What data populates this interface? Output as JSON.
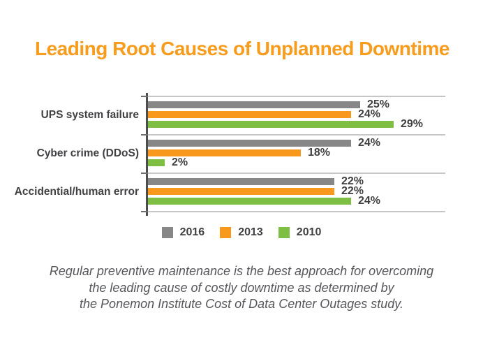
{
  "title": {
    "text": "Leading Root Causes of Unplanned Downtime",
    "color": "#F89C1D"
  },
  "chart_data": {
    "type": "bar",
    "orientation": "horizontal",
    "title": "Leading Root Causes of Unplanned Downtime",
    "categories": [
      "UPS system failure",
      "Cyber crime (DDoS)",
      "Accidential/human error"
    ],
    "series": [
      {
        "name": "2016",
        "color": "#878787",
        "values": [
          25,
          24,
          22
        ]
      },
      {
        "name": "2013",
        "color": "#F8981D",
        "values": [
          24,
          18,
          22
        ]
      },
      {
        "name": "2010",
        "color": "#7EBE42",
        "values": [
          29,
          2,
          24
        ]
      }
    ],
    "value_suffix": "%",
    "xlim": [
      0,
      35
    ],
    "grid": "horizontal category separators with left ticks",
    "legend_position": "bottom-center",
    "axis_color": "#4D4D4D",
    "gridline_color": "#C6C6C6",
    "value_label_color": "#3F3F41"
  },
  "footnote": {
    "line1": "Regular preventive maintenance is the best approach for overcoming",
    "line2": "the leading cause of costly downtime as determined by",
    "line3": "the Ponemon Institute Cost of Data Center Outages study."
  }
}
